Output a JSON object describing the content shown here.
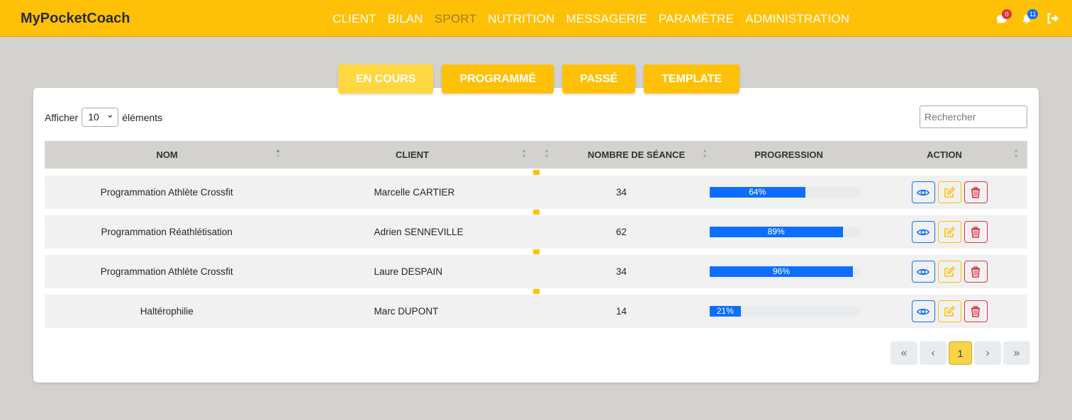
{
  "brand": "MyPocketCoach",
  "menu": [
    "CLIENT",
    "BILAN",
    "SPORT",
    "NUTRITION",
    "MESSAGERIE",
    "PARAMÈTRE",
    "ADMINISTRATION"
  ],
  "active_menu": "SPORT",
  "badges": {
    "messages": "0",
    "notifications": "11"
  },
  "tabs": [
    "EN COURS",
    "PROGRAMMÉ",
    "PASSÉ",
    "TEMPLATE"
  ],
  "length": {
    "label_before": "Afficher",
    "value": "10",
    "label_after": "éléments"
  },
  "search": {
    "placeholder": "Rechercher"
  },
  "columns": [
    "NOM",
    "CLIENT",
    "NOMBRE DE SÉANCE",
    "PROGRESSION",
    "ACTION"
  ],
  "rows": [
    {
      "nom": "Programmation Athlète Crossfit",
      "client": "Marcelle CARTIER",
      "seances": "34",
      "progress": 64,
      "progress_label": "64%"
    },
    {
      "nom": "Programmation Réathlétisation",
      "client": "Adrien SENNEVILLE",
      "seances": "62",
      "progress": 89,
      "progress_label": "89%"
    },
    {
      "nom": "Programmation Athlète Crossfit",
      "client": "Laure DESPAIN",
      "seances": "34",
      "progress": 96,
      "progress_label": "96%"
    },
    {
      "nom": "Haltérophilie",
      "client": "Marc DUPONT",
      "seances": "14",
      "progress": 21,
      "progress_label": "21%"
    }
  ],
  "pagination": {
    "first": "«",
    "prev": "‹",
    "current": "1",
    "next": "›",
    "last": "»"
  },
  "colors": {
    "accent": "#ffc107",
    "view": "#0d6efd",
    "edit": "#ffc107",
    "delete": "#dc3545"
  }
}
